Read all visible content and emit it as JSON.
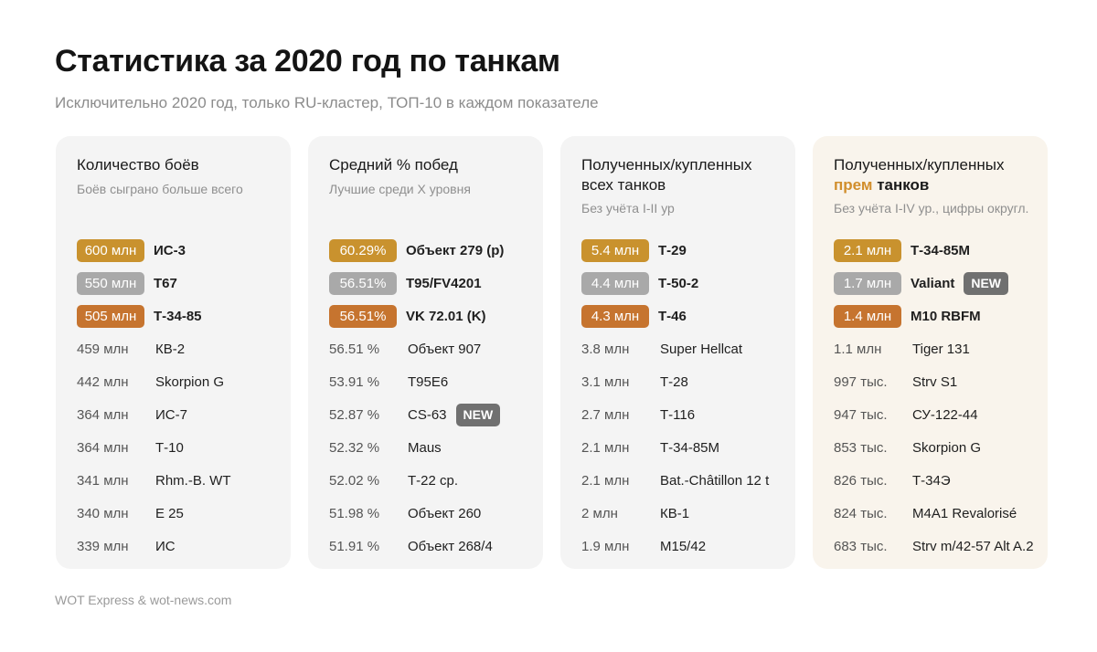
{
  "title": "Статистика за 2020 год по танкам",
  "subtitle": "Исключительно 2020 год, только RU-кластер, ТОП-10 в каждом показателе",
  "footer": "WOT Express & wot-news.com",
  "colors": {
    "gold": "#c9922e",
    "silver": "#a9a9a9",
    "bronze": "#c6742f",
    "highlight": "#d18e2c",
    "new_badge": "#707070"
  },
  "cards": [
    {
      "title": "Количество боёв",
      "note": "Боёв сыграно больше всего",
      "rows": [
        {
          "value": "600 млн",
          "name": "ИС-3"
        },
        {
          "value": "550 млн",
          "name": "T67"
        },
        {
          "value": "505 млн",
          "name": "Т-34-85"
        },
        {
          "value": "459 млн",
          "name": "КВ-2"
        },
        {
          "value": "442 млн",
          "name": "Skorpion G"
        },
        {
          "value": "364 млн",
          "name": "ИС-7"
        },
        {
          "value": "364 млн",
          "name": "Т-10"
        },
        {
          "value": "341 млн",
          "name": "Rhm.-B. WT"
        },
        {
          "value": "340 млн",
          "name": "E 25"
        },
        {
          "value": "339 млн",
          "name": "ИС"
        }
      ]
    },
    {
      "title": "Средний % побед",
      "note": "Лучшие среди X уровня",
      "rows": [
        {
          "value": "60.29%",
          "name": "Объект 279 (р)"
        },
        {
          "value": "56.51%",
          "name": "T95/FV4201"
        },
        {
          "value": "56.51%",
          "name": "VK 72.01 (K)"
        },
        {
          "value": "56.51 %",
          "name": "Объект 907"
        },
        {
          "value": "53.91 %",
          "name": "T95E6"
        },
        {
          "value": "52.87 %",
          "name": "CS-63",
          "new": "NEW"
        },
        {
          "value": "52.32 %",
          "name": "Maus"
        },
        {
          "value": "52.02 %",
          "name": "Т-22 ср."
        },
        {
          "value": "51.98 %",
          "name": "Объект 260"
        },
        {
          "value": "51.91 %",
          "name": "Объект 268/4"
        }
      ]
    },
    {
      "title_line1": "Полученных/купленных",
      "title_line2": "всех танков",
      "note": "Без учёта I-II ур",
      "rows": [
        {
          "value": "5.4 млн",
          "name": "Т-29"
        },
        {
          "value": "4.4 млн",
          "name": "Т-50-2"
        },
        {
          "value": "4.3 млн",
          "name": "Т-46"
        },
        {
          "value": "3.8 млн",
          "name": "Super Hellcat"
        },
        {
          "value": "3.1 млн",
          "name": "Т-28"
        },
        {
          "value": "2.7 млн",
          "name": "Т-116"
        },
        {
          "value": "2.1 млн",
          "name": "Т-34-85М"
        },
        {
          "value": "2.1 млн",
          "name": "Bat.-Châtillon 12 t"
        },
        {
          "value": "2 млн",
          "name": "КВ-1"
        },
        {
          "value": "1.9 млн",
          "name": "M15/42"
        }
      ]
    },
    {
      "title_line1": "Полученных/купленных",
      "title_hl": "прем",
      "title_bold": "танков",
      "note": "Без учёта I-IV ур., цифры округл.",
      "rows": [
        {
          "value": "2.1 млн",
          "name": "Т-34-85М"
        },
        {
          "value": "1.7 млн",
          "name": "Valiant",
          "new": "NEW"
        },
        {
          "value": "1.4 млн",
          "name": "M10 RBFM"
        },
        {
          "value": "1.1 млн",
          "name": "Tiger 131"
        },
        {
          "value": "997 тыс.",
          "name": "Strv S1"
        },
        {
          "value": "947 тыс.",
          "name": "СУ-122-44"
        },
        {
          "value": "853 тыс.",
          "name": "Skorpion G"
        },
        {
          "value": "826 тыс.",
          "name": "Т-34Э"
        },
        {
          "value": "824 тыс.",
          "name": "M4A1 Revalorisé"
        },
        {
          "value": "683 тыс.",
          "name": "Strv m/42-57 Alt A.2"
        }
      ]
    }
  ]
}
